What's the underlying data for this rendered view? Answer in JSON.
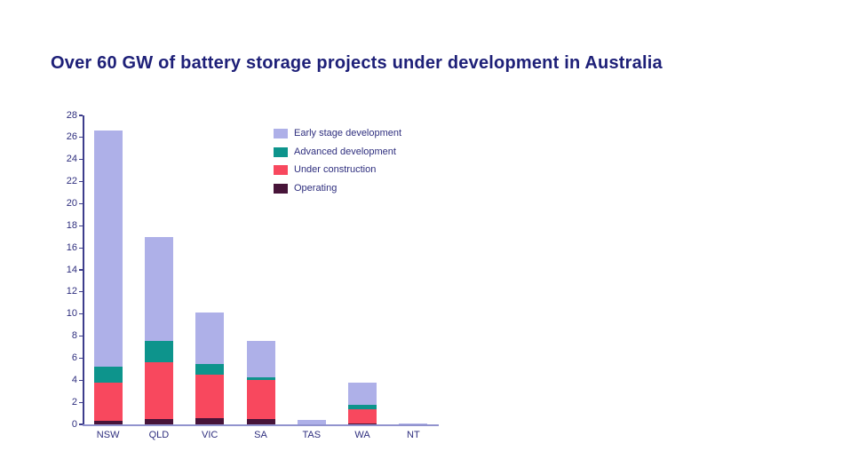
{
  "title": "Over 60 GW of battery storage projects under development in Australia",
  "colors": {
    "background": "#ffffff",
    "title_text": "#1e2078",
    "axis_text": "#2e2e7e",
    "y_axis_line": "#3d3d8c",
    "x_axis_line": "#9193ce"
  },
  "chart_data": {
    "type": "bar",
    "stacked": true,
    "units": "GW",
    "categories": [
      "NSW",
      "QLD",
      "VIC",
      "SA",
      "TAS",
      "WA",
      "NT"
    ],
    "series": [
      {
        "name": "Operating",
        "color": "#471439",
        "values": [
          0.3,
          0.5,
          0.55,
          0.5,
          0,
          0.1,
          0
        ]
      },
      {
        "name": "Under construction",
        "color": "#f8485e",
        "values": [
          3.45,
          5.15,
          3.95,
          3.55,
          0,
          1.25,
          0
        ]
      },
      {
        "name": "Advanced development",
        "color": "#0d948c",
        "values": [
          1.5,
          1.95,
          0.95,
          0.2,
          0,
          0.45,
          0
        ]
      },
      {
        "name": "Early stage development",
        "color": "#aeb0e8",
        "values": [
          21.35,
          9.4,
          4.65,
          3.3,
          0.4,
          2.0,
          0.12
        ]
      }
    ],
    "totals": [
      26.6,
      17.0,
      10.1,
      7.55,
      0.4,
      3.8,
      0.12
    ],
    "legend": {
      "position": "top-right-inside",
      "entries": [
        {
          "label": "Early stage development",
          "color": "#aeb0e8"
        },
        {
          "label": "Advanced development",
          "color": "#0d948c"
        },
        {
          "label": "Under construction",
          "color": "#f8485e"
        },
        {
          "label": "Operating",
          "color": "#471439"
        }
      ]
    },
    "xlabel": "",
    "ylabel": "",
    "ylim": [
      0,
      28
    ],
    "ytick_step": 2,
    "grid": false
  }
}
